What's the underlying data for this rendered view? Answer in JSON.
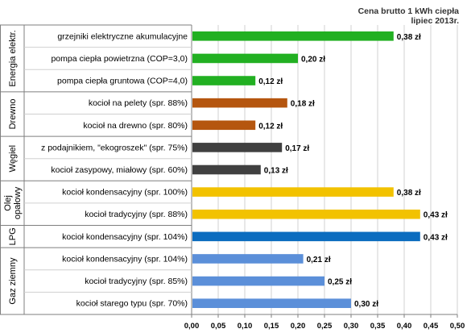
{
  "chart_data": {
    "type": "bar",
    "orientation": "horizontal",
    "title": "Cena brutto 1 kWh ciepła",
    "subtitle": "lipiec 2013r.",
    "xlabel": "",
    "ylabel": "",
    "xlim": [
      0,
      0.5
    ],
    "x_ticks": [
      "0,00",
      "0,05",
      "0,10",
      "0,15",
      "0,20",
      "0,25",
      "0,30",
      "0,35",
      "0,40",
      "0,45",
      "0,50"
    ],
    "grid": true,
    "legend": "none",
    "groups": [
      {
        "label": "Energia elektr.",
        "color": "#22b022",
        "items": [
          {
            "label": "grzejniki elektryczne akumulacyjne",
            "value": 0.38,
            "value_label": "0,38 zł"
          },
          {
            "label": "pompa ciepła powietrzna (COP=3,0)",
            "value": 0.2,
            "value_label": "0,20 zł"
          },
          {
            "label": "pompa ciepła gruntowa (COP=4,0)",
            "value": 0.12,
            "value_label": "0,12 zł"
          }
        ]
      },
      {
        "label": "Drewno",
        "color": "#b5560f",
        "items": [
          {
            "label": "kocioł na pelety (spr. 88%)",
            "value": 0.18,
            "value_label": "0,18 zł"
          },
          {
            "label": "kocioł na drewno (spr. 80%)",
            "value": 0.12,
            "value_label": "0,12 zł"
          }
        ]
      },
      {
        "label": "Węgiel",
        "color": "#404040",
        "items": [
          {
            "label": "z podajnikiem, \"ekogroszek\" (spr. 75%)",
            "value": 0.17,
            "value_label": "0,17 zł"
          },
          {
            "label": "kocioł zasypowy, miałowy (spr. 60%)",
            "value": 0.13,
            "value_label": "0,13 zł"
          }
        ]
      },
      {
        "label": "Olej opałowy",
        "label_lines": [
          "Olej",
          "opałowy"
        ],
        "color": "#f2c200",
        "items": [
          {
            "label": "kocioł kondensacyjny (spr. 100%)",
            "value": 0.38,
            "value_label": "0,38 zł"
          },
          {
            "label": "kocioł tradycyjny (spr. 88%)",
            "value": 0.43,
            "value_label": "0,43 zł"
          }
        ]
      },
      {
        "label": "LPG",
        "color": "#0b6cbf",
        "items": [
          {
            "label": "kocioł kondensacyjny (spr. 104%)",
            "value": 0.43,
            "value_label": "0,43 zł"
          }
        ]
      },
      {
        "label": "Gaz ziemny",
        "color": "#5b8fd9",
        "items": [
          {
            "label": "kocioł kondensacyjny (spr. 104%)",
            "value": 0.21,
            "value_label": "0,21 zł"
          },
          {
            "label": "kocioł tradycyjny (spr. 85%)",
            "value": 0.25,
            "value_label": "0,25 zł"
          },
          {
            "label": "kocioł starego typu (spr. 70%)",
            "value": 0.3,
            "value_label": "0,30 zł"
          }
        ]
      }
    ]
  }
}
